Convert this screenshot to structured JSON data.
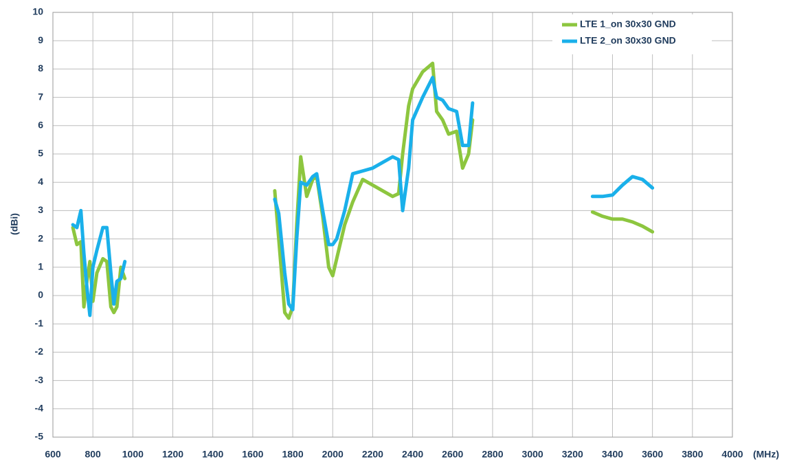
{
  "chart_data": {
    "type": "line",
    "xlabel": "(MHz)",
    "ylabel": "(dBi)",
    "x": [
      700,
      720,
      740,
      755,
      770,
      785,
      800,
      820,
      850,
      870,
      890,
      905,
      920,
      940,
      960,
      1300,
      1710,
      1730,
      1760,
      1780,
      1800,
      1820,
      1840,
      1870,
      1900,
      1920,
      1950,
      1980,
      2000,
      2020,
      2060,
      2100,
      2150,
      2200,
      2250,
      2300,
      2330,
      2350,
      2380,
      2400,
      2450,
      2500,
      2520,
      2550,
      2580,
      2620,
      2650,
      2680,
      2700,
      3000,
      3300,
      3350,
      3400,
      3450,
      3500,
      3550,
      3600
    ],
    "series": [
      {
        "name": "LTE 1_on 30x30 GND",
        "color": "#8dc63f",
        "values": [
          2.4,
          1.8,
          1.9,
          -0.4,
          0.5,
          1.2,
          -0.2,
          0.8,
          1.3,
          1.2,
          -0.4,
          -0.6,
          -0.4,
          1.0,
          0.6,
          null,
          3.7,
          2.0,
          -0.6,
          -0.8,
          -0.4,
          2.5,
          4.9,
          3.5,
          4.1,
          4.2,
          2.8,
          1.0,
          0.7,
          1.3,
          2.5,
          3.3,
          4.1,
          3.9,
          3.7,
          3.5,
          3.6,
          5.0,
          6.7,
          7.3,
          7.9,
          8.2,
          6.5,
          6.2,
          5.7,
          5.8,
          4.5,
          5.0,
          6.2,
          null,
          2.95,
          2.8,
          2.7,
          2.7,
          2.6,
          2.45,
          2.25
        ]
      },
      {
        "name": "LTE 2_on 30x30 GND",
        "color": "#1ab0ea",
        "values": [
          2.5,
          2.4,
          3.0,
          1.5,
          0.3,
          -0.7,
          1.0,
          1.6,
          2.4,
          2.4,
          0.8,
          -0.3,
          0.5,
          0.6,
          1.2,
          null,
          3.4,
          2.9,
          0.8,
          -0.3,
          -0.5,
          2.0,
          4.0,
          3.9,
          4.2,
          4.3,
          3.0,
          1.8,
          1.8,
          2.0,
          3.0,
          4.3,
          4.4,
          4.5,
          4.7,
          4.9,
          4.8,
          3.0,
          4.5,
          6.2,
          7.0,
          7.7,
          7.0,
          6.9,
          6.6,
          6.5,
          5.3,
          5.3,
          6.8,
          null,
          3.5,
          3.5,
          3.55,
          3.9,
          4.2,
          4.1,
          3.8
        ]
      }
    ],
    "xlim": [
      600,
      4000
    ],
    "xticks": [
      600,
      800,
      1000,
      1200,
      1400,
      1600,
      1800,
      2000,
      2200,
      2400,
      2600,
      2800,
      3000,
      3200,
      3400,
      3600,
      3800,
      4000
    ],
    "ylim": [
      -5,
      10
    ],
    "yticks": [
      -5,
      -4,
      -3,
      -2,
      -1,
      0,
      1,
      2,
      3,
      4,
      5,
      6,
      7,
      8,
      9,
      10
    ],
    "grid": true,
    "legend": "upper right"
  }
}
